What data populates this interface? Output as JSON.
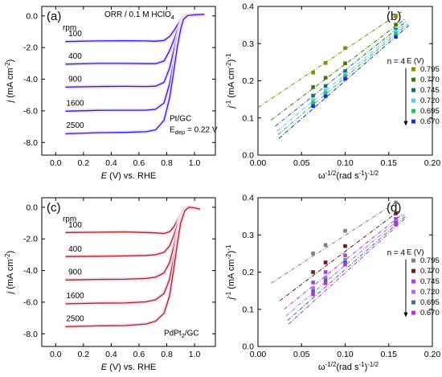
{
  "chart_data": [
    {
      "id": "a",
      "type": "line",
      "panel_label": "(a)",
      "title": "ORR / 0.1 M HClO",
      "title_sub": "4",
      "xlabel_italic": "E",
      "xlabel_rest": " (V) vs. RHE",
      "ylabel_italic": "j",
      "ylabel_rest": " (mA cm",
      "ylabel_sup": "-2",
      "ylabel_end": ")",
      "xlim": [
        -0.1,
        1.15
      ],
      "ylim": [
        -8.8,
        0.6
      ],
      "xticks": [
        0.0,
        0.2,
        0.4,
        0.6,
        0.8,
        1.0
      ],
      "xticklabels": [
        "0.0",
        "0.2",
        "0.4",
        "0.6",
        "0.8",
        "1.0"
      ],
      "yticks": [
        0,
        -2,
        -4,
        -6,
        -8
      ],
      "yticklabels": [
        "0.0",
        "-2.0",
        "-4.0",
        "-6.0",
        "-8.0"
      ],
      "rpm_header": "rpm",
      "series_color": "#2323d8",
      "halo_color": "#f4d8f0",
      "series": [
        {
          "name": "100",
          "x": [
            0.07,
            0.3,
            0.5,
            0.65,
            0.72,
            0.78,
            0.82,
            0.85,
            0.875,
            0.9,
            0.92,
            0.95,
            1.0,
            1.07
          ],
          "y": [
            -1.62,
            -1.58,
            -1.57,
            -1.58,
            -1.6,
            -1.55,
            -1.3,
            -0.95,
            -0.6,
            -0.3,
            -0.08,
            0.06,
            0.08,
            0.1
          ]
        },
        {
          "name": "400",
          "x": [
            0.07,
            0.3,
            0.5,
            0.65,
            0.72,
            0.78,
            0.82,
            0.85,
            0.875,
            0.9,
            0.92,
            0.95,
            1.0,
            1.07
          ],
          "y": [
            -3.05,
            -3.0,
            -3.0,
            -3.02,
            -3.02,
            -2.85,
            -2.2,
            -1.55,
            -0.95,
            -0.45,
            -0.12,
            0.04,
            0.07,
            0.1
          ]
        },
        {
          "name": "900",
          "x": [
            0.07,
            0.3,
            0.5,
            0.65,
            0.72,
            0.78,
            0.82,
            0.85,
            0.875,
            0.9,
            0.92,
            0.95,
            1.0,
            1.07
          ],
          "y": [
            -4.5,
            -4.46,
            -4.45,
            -4.46,
            -4.44,
            -4.2,
            -3.3,
            -2.2,
            -1.3,
            -0.6,
            -0.15,
            0.03,
            0.07,
            0.1
          ]
        },
        {
          "name": "1600",
          "x": [
            0.07,
            0.3,
            0.5,
            0.65,
            0.72,
            0.78,
            0.82,
            0.85,
            0.875,
            0.9,
            0.92,
            0.95,
            1.0,
            1.07
          ],
          "y": [
            -6.02,
            -5.97,
            -5.96,
            -5.96,
            -5.9,
            -5.5,
            -4.3,
            -2.9,
            -1.7,
            -0.75,
            -0.2,
            0.02,
            0.07,
            0.1
          ]
        },
        {
          "name": "2500",
          "x": [
            0.07,
            0.3,
            0.5,
            0.65,
            0.72,
            0.78,
            0.82,
            0.85,
            0.875,
            0.9,
            0.92,
            0.95,
            1.0,
            1.07
          ],
          "y": [
            -7.45,
            -7.38,
            -7.36,
            -7.32,
            -7.2,
            -6.6,
            -5.2,
            -3.5,
            -2.0,
            -0.85,
            -0.22,
            0.02,
            0.07,
            0.1
          ]
        }
      ],
      "note1": "Pt/GC",
      "note2_main": "E",
      "note2_sub": "dep",
      "note2_rest": " = 0.22 V"
    },
    {
      "id": "b",
      "type": "scatter",
      "panel_label": "(b)",
      "xlabel_main": "ω",
      "xlabel_sup": "-1/2",
      "xlabel_mid": "(rad s",
      "xlabel_sup2": "-1",
      "xlabel_end": ")",
      "xlabel_sup3": "-1/2",
      "ylabel_main": "j",
      "ylabel_sup": "-1",
      "ylabel_rest": " (mA cm",
      "ylabel_sup2": "-2",
      "ylabel_end": ")",
      "ylabel_sup3": "-1",
      "xlim": [
        0.0,
        0.2
      ],
      "ylim": [
        0.0,
        0.4
      ],
      "xticks": [
        0.0,
        0.05,
        0.1,
        0.15,
        0.2
      ],
      "xticklabels": [
        "0.00",
        "0.05",
        "0.10",
        "0.15",
        "0.20"
      ],
      "yticks": [
        0.0,
        0.1,
        0.2,
        0.3,
        0.4
      ],
      "yticklabels": [
        "0.0",
        "0.1",
        "0.2",
        "0.3",
        "0.4"
      ],
      "note": "n = 4",
      "legend_title": "E (V)",
      "x_points": [
        0.02,
        0.0333,
        0.05,
        0.0632,
        0.0775,
        0.1,
        0.1155,
        0.1414,
        0.1581
      ],
      "series": [
        {
          "name": "0.795",
          "color": "#8a8a00",
          "x": [
            0.0632,
            0.0775,
            0.1,
            0.1581
          ],
          "y": [
            0.222,
            0.248,
            0.288,
            0.375
          ],
          "line_x": [
            0.0,
            0.165
          ],
          "line_y": [
            0.128,
            0.386
          ]
        },
        {
          "name": "0.770",
          "color": "#3c7a10",
          "x": [
            0.0632,
            0.0775,
            0.1,
            0.1581
          ],
          "y": [
            0.183,
            0.208,
            0.247,
            0.351
          ],
          "line_x": [
            0.015,
            0.168
          ],
          "line_y": [
            0.094,
            0.365
          ]
        },
        {
          "name": "0.745",
          "color": "#1f6a6a",
          "x": [
            0.0632,
            0.0775,
            0.1,
            0.1581
          ],
          "y": [
            0.16,
            0.186,
            0.226,
            0.338
          ],
          "line_x": [
            0.02,
            0.17
          ],
          "line_y": [
            0.078,
            0.36
          ]
        },
        {
          "name": "0.720",
          "color": "#5ac8f0",
          "x": [
            0.0632,
            0.0775,
            0.1,
            0.1581
          ],
          "y": [
            0.148,
            0.174,
            0.218,
            0.333
          ],
          "line_x": [
            0.022,
            0.171
          ],
          "line_y": [
            0.065,
            0.356
          ]
        },
        {
          "name": "0.695",
          "color": "#20c060",
          "x": [
            0.0632,
            0.0775,
            0.1,
            0.1581
          ],
          "y": [
            0.14,
            0.166,
            0.212,
            0.326
          ],
          "line_x": [
            0.023,
            0.172
          ],
          "line_y": [
            0.055,
            0.353
          ]
        },
        {
          "name": "0.670",
          "color": "#1a2fd0",
          "x": [
            0.0632,
            0.0775,
            0.1,
            0.1581
          ],
          "y": [
            0.132,
            0.158,
            0.205,
            0.318
          ],
          "line_x": [
            0.024,
            0.173
          ],
          "line_y": [
            0.045,
            0.349
          ]
        }
      ]
    },
    {
      "id": "c",
      "type": "line",
      "panel_label": "(c)",
      "xlabel_italic": "E",
      "xlabel_rest": " (V) vs. RHE",
      "ylabel_italic": "j",
      "ylabel_rest": " (mA cm",
      "ylabel_sup": "-2",
      "ylabel_end": ")",
      "xlim": [
        -0.1,
        1.15
      ],
      "ylim": [
        -8.8,
        0.6
      ],
      "xticks": [
        0.0,
        0.2,
        0.4,
        0.6,
        0.8,
        1.0
      ],
      "xticklabels": [
        "0.0",
        "0.2",
        "0.4",
        "0.6",
        "0.8",
        "1.0"
      ],
      "yticks": [
        0,
        -2,
        -4,
        -6,
        -8
      ],
      "yticklabels": [
        "0.0",
        "-2.0",
        "-4.0",
        "-6.0",
        "-8.0"
      ],
      "rpm_header": "rpm",
      "series_color": "#a8281a",
      "halo_color": "#f4d8f0",
      "series": [
        {
          "name": "100",
          "x": [
            0.07,
            0.3,
            0.5,
            0.65,
            0.72,
            0.78,
            0.82,
            0.85,
            0.875,
            0.9,
            0.93,
            0.96,
            1.0,
            1.04
          ],
          "y": [
            -1.6,
            -1.58,
            -1.56,
            -1.6,
            -1.62,
            -1.66,
            -1.55,
            -1.25,
            -0.85,
            -0.45,
            -0.12,
            0.02,
            -0.04,
            -0.12
          ]
        },
        {
          "name": "400",
          "x": [
            0.07,
            0.3,
            0.5,
            0.65,
            0.72,
            0.78,
            0.82,
            0.85,
            0.875,
            0.9,
            0.93,
            0.96,
            1.0,
            1.04
          ],
          "y": [
            -3.12,
            -3.1,
            -3.08,
            -3.05,
            -3.0,
            -2.85,
            -2.45,
            -1.8,
            -1.15,
            -0.55,
            -0.15,
            0.02,
            -0.04,
            -0.12
          ]
        },
        {
          "name": "900",
          "x": [
            0.07,
            0.3,
            0.5,
            0.65,
            0.72,
            0.78,
            0.82,
            0.85,
            0.875,
            0.9,
            0.93,
            0.96,
            1.0,
            1.04
          ],
          "y": [
            -4.6,
            -4.56,
            -4.55,
            -4.5,
            -4.42,
            -4.15,
            -3.5,
            -2.5,
            -1.55,
            -0.7,
            -0.18,
            0.01,
            -0.04,
            -0.12
          ]
        },
        {
          "name": "1600",
          "x": [
            0.07,
            0.3,
            0.5,
            0.65,
            0.72,
            0.78,
            0.82,
            0.85,
            0.875,
            0.9,
            0.93,
            0.96,
            1.0,
            1.04
          ],
          "y": [
            -6.1,
            -6.06,
            -6.05,
            -5.98,
            -5.85,
            -5.45,
            -4.55,
            -3.2,
            -1.95,
            -0.85,
            -0.2,
            0.0,
            -0.04,
            -0.12
          ]
        },
        {
          "name": "2500",
          "x": [
            0.07,
            0.3,
            0.5,
            0.65,
            0.72,
            0.78,
            0.82,
            0.85,
            0.875,
            0.9,
            0.93,
            0.96,
            1.0,
            1.04
          ],
          "y": [
            -7.55,
            -7.5,
            -7.48,
            -7.38,
            -7.2,
            -6.7,
            -5.6,
            -3.9,
            -2.35,
            -1.0,
            -0.22,
            0.0,
            -0.04,
            -0.12
          ]
        }
      ],
      "note1_main": "PdPt",
      "note1_sub": "2",
      "note1_rest": "/GC"
    },
    {
      "id": "d",
      "type": "scatter",
      "panel_label": "(d)",
      "xlabel_main": "ω",
      "xlabel_sup": "-1/2",
      "xlabel_mid": "(rad s",
      "xlabel_sup2": "-1",
      "xlabel_end": ")",
      "xlabel_sup3": "-1/2",
      "ylabel_main": "j",
      "ylabel_sup": "-1",
      "ylabel_rest": " (mA cm",
      "ylabel_sup2": "-2",
      "ylabel_end": ")",
      "ylabel_sup3": "-1",
      "xlim": [
        0.0,
        0.2
      ],
      "ylim": [
        0.0,
        0.4
      ],
      "xticks": [
        0.0,
        0.05,
        0.1,
        0.15,
        0.2
      ],
      "xticklabels": [
        "0.00",
        "0.05",
        "0.10",
        "0.15",
        "0.20"
      ],
      "yticks": [
        0.0,
        0.1,
        0.2,
        0.3,
        0.4
      ],
      "yticklabels": [
        "0.0",
        "0.1",
        "0.2",
        "0.3",
        "0.4"
      ],
      "note": "n = 4",
      "legend_title": "E (V)",
      "series": [
        {
          "name": "0.795",
          "color": "#808080",
          "x": [
            0.0632,
            0.0775,
            0.1,
            0.1581
          ],
          "y": [
            0.25,
            0.273,
            0.311,
            0.387
          ],
          "line_x": [
            0.015,
            0.16
          ],
          "line_y": [
            0.17,
            0.39
          ]
        },
        {
          "name": "0.770",
          "color": "#6a1a1a",
          "x": [
            0.0632,
            0.0775,
            0.1,
            0.1581
          ],
          "y": [
            0.2,
            0.226,
            0.27,
            0.358
          ],
          "line_x": [
            0.025,
            0.162
          ],
          "line_y": [
            0.123,
            0.365
          ]
        },
        {
          "name": "0.745",
          "color": "#9a46e0",
          "x": [
            0.0632,
            0.0775,
            0.1,
            0.1581
          ],
          "y": [
            0.172,
            0.2,
            0.245,
            0.343
          ],
          "line_x": [
            0.03,
            0.166
          ],
          "line_y": [
            0.1,
            0.357
          ]
        },
        {
          "name": "0.720",
          "color": "#b068f0",
          "x": [
            0.0632,
            0.0775,
            0.1,
            0.1581
          ],
          "y": [
            0.157,
            0.185,
            0.233,
            0.337
          ],
          "line_x": [
            0.032,
            0.168
          ],
          "line_y": [
            0.082,
            0.355
          ]
        },
        {
          "name": "0.695",
          "color": "#3d6e8e",
          "x": [
            0.0632,
            0.0775,
            0.1,
            0.1581
          ],
          "y": [
            0.148,
            0.178,
            0.226,
            0.332
          ],
          "line_x": [
            0.034,
            0.17
          ],
          "line_y": [
            0.07,
            0.352
          ]
        },
        {
          "name": "0.670",
          "color": "#c030d0",
          "x": [
            0.0632,
            0.0775,
            0.1,
            0.1581
          ],
          "y": [
            0.14,
            0.17,
            0.22,
            0.328
          ],
          "line_x": [
            0.035,
            0.171
          ],
          "line_y": [
            0.06,
            0.349
          ]
        }
      ]
    }
  ]
}
